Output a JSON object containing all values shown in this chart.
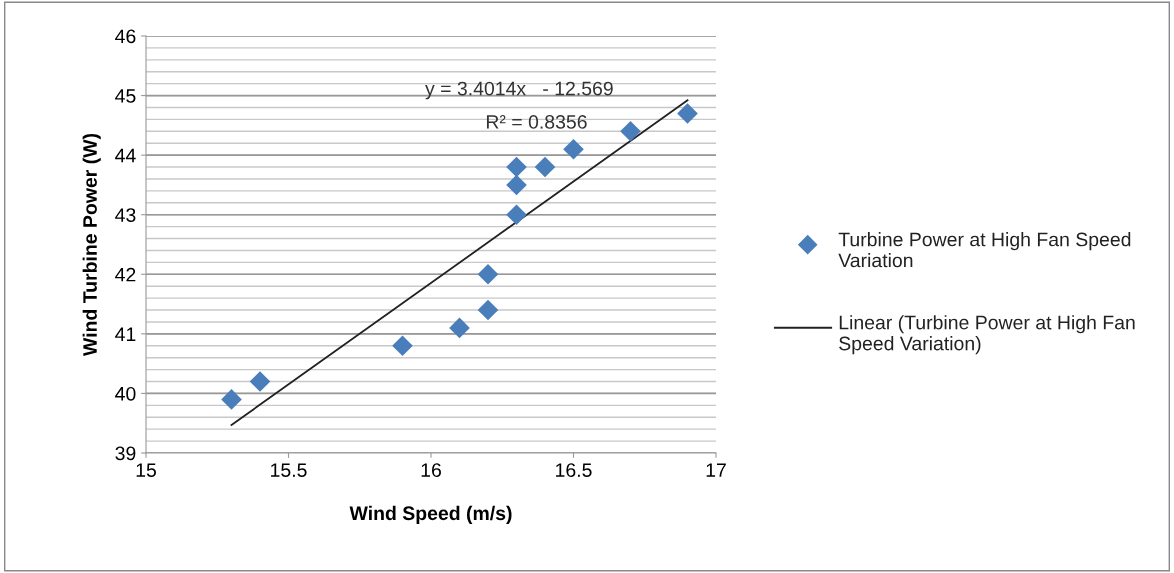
{
  "chart_data": {
    "type": "scatter",
    "xlabel": "Wind Speed (m/s)",
    "ylabel": "Wind Turbine Power (W)",
    "xlim": [
      15,
      17
    ],
    "xticks": [
      15,
      15.5,
      16,
      16.5,
      17
    ],
    "ylim": [
      39,
      46
    ],
    "yticks": [
      39,
      40,
      41,
      42,
      43,
      44,
      45,
      46
    ],
    "grid": "y",
    "legend": "right",
    "annotations": [
      "y = 3.4014x   - 12.569",
      "R² = 0.8356"
    ],
    "series": [
      {
        "name": "Turbine Power at High Fan Speed Variation",
        "color": "#4a7ebb",
        "marker": "diamond",
        "x": [
          15.3,
          15.4,
          15.9,
          16.1,
          16.2,
          16.2,
          16.3,
          16.3,
          16.3,
          16.4,
          16.5,
          16.7,
          16.9
        ],
        "values": [
          39.9,
          40.2,
          40.8,
          41.1,
          41.4,
          42.0,
          43.0,
          43.5,
          43.8,
          43.8,
          44.1,
          44.4,
          44.7
        ]
      },
      {
        "name": "Linear (Turbine Power at High Fan Speed Variation)",
        "color": "#222222",
        "type": "line",
        "x": [
          15.3,
          16.9
        ],
        "values": [
          39.47,
          44.92
        ]
      }
    ]
  }
}
